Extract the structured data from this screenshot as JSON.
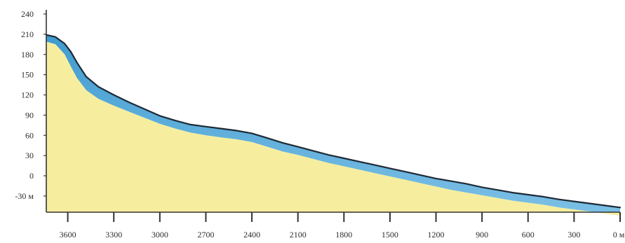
{
  "chart_data": {
    "type": "area",
    "title": "",
    "xlabel": "",
    "ylabel": "",
    "x_direction": "descending",
    "xlim": [
      3740,
      0
    ],
    "ylim": [
      -54,
      240
    ],
    "yticks": [
      240,
      210,
      180,
      150,
      120,
      90,
      60,
      30,
      0,
      -30
    ],
    "ytick_labels": [
      "240",
      "210",
      "180",
      "150",
      "120",
      "90",
      "60",
      "30",
      "0",
      "-30 м"
    ],
    "xticks": [
      3600,
      3300,
      3000,
      2700,
      2400,
      2100,
      1800,
      1500,
      1200,
      900,
      600,
      300,
      0
    ],
    "xtick_labels": [
      "3600",
      "3300",
      "3000",
      "2700",
      "2400",
      "2100",
      "1800",
      "1500",
      "1200",
      "900",
      "600",
      "300",
      "0 м"
    ],
    "grid": false,
    "series": [
      {
        "x": [
          3740,
          3680,
          3620,
          3580,
          3540,
          3480,
          3400,
          3300,
          3200,
          3100,
          3000,
          2900,
          2800,
          2700,
          2600,
          2500,
          2400,
          2300,
          2200,
          2100,
          2000,
          1900,
          1800,
          1700,
          1600,
          1500,
          1400,
          1300,
          1200,
          1100,
          1000,
          900,
          800,
          700,
          600,
          500,
          400,
          300,
          200,
          100,
          0
        ],
        "values": [
          209,
          206,
          196,
          184,
          168,
          147,
          132,
          120,
          109,
          99,
          89,
          82,
          76,
          73,
          70,
          67,
          63,
          56,
          49,
          43,
          37,
          31,
          26,
          21,
          16,
          11,
          6,
          1,
          -4,
          -8,
          -12,
          -17,
          -21,
          -25,
          -28,
          -31,
          -35,
          -38,
          -41,
          -44,
          -47
        ]
      },
      {
        "x": [
          3740,
          3680,
          3620,
          3580,
          3540,
          3480,
          3400,
          3300,
          3200,
          3100,
          3000,
          2900,
          2800,
          2700,
          2600,
          2500,
          2400,
          2300,
          2200,
          2100,
          2000,
          1900,
          1800,
          1700,
          1600,
          1500,
          1400,
          1300,
          1200,
          1100,
          1000,
          900,
          800,
          700,
          600,
          500,
          400,
          300,
          200,
          100,
          0
        ],
        "values": [
          199,
          195,
          180,
          162,
          145,
          127,
          114,
          104,
          95,
          86,
          77,
          70,
          64,
          60,
          57,
          54,
          50,
          43,
          36,
          31,
          25,
          19,
          14,
          9,
          4,
          -1,
          -6,
          -11,
          -16,
          -21,
          -25,
          -29,
          -33,
          -37,
          -40,
          -43,
          -47,
          -50,
          -53,
          -56,
          -59
        ]
      }
    ],
    "colors": {
      "background": "#ffffff",
      "sediment": "#f6ee9e",
      "ice": "#3f9bcf",
      "ice_light": "#7cc0e6",
      "outline": "#1e2a36",
      "axis": "#333333"
    }
  }
}
